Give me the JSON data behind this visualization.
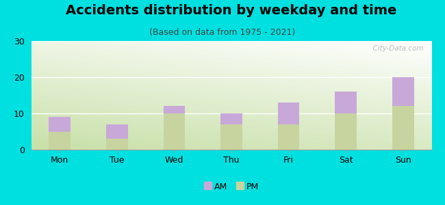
{
  "title": "Accidents distribution by weekday and time",
  "subtitle": "(Based on data from 1975 - 2021)",
  "categories": [
    "Mon",
    "Tue",
    "Wed",
    "Thu",
    "Fri",
    "Sat",
    "Sun"
  ],
  "pm_values": [
    5,
    3,
    10,
    7,
    7,
    10,
    12
  ],
  "am_values": [
    4,
    4,
    2,
    3,
    6,
    6,
    8
  ],
  "am_color": "#c8a8d8",
  "pm_color": "#c8d4a0",
  "background_color": "#00e0e0",
  "ylim": [
    0,
    30
  ],
  "yticks": [
    0,
    10,
    20,
    30
  ],
  "bar_width": 0.38,
  "title_fontsize": 14,
  "subtitle_fontsize": 9,
  "tick_fontsize": 9,
  "legend_fontsize": 9,
  "watermark_text": "  City-Data.com"
}
